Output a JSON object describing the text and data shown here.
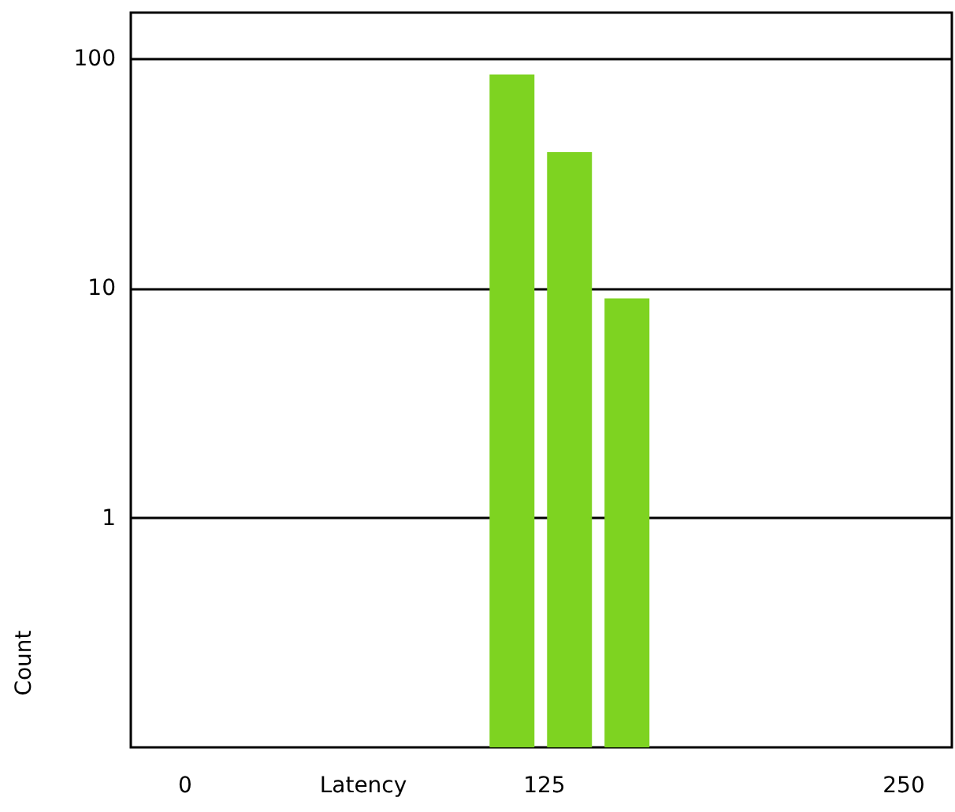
{
  "chart_data": {
    "type": "histogram",
    "xlabel": "Latency",
    "ylabel": "Count",
    "bins": [
      104,
      124,
      144,
      164
    ],
    "values": [
      85,
      39,
      9
    ],
    "color": "#7ed321",
    "xlim": [
      -18.6,
      267
    ],
    "xticks": [
      0,
      125,
      250
    ],
    "ylim": [
      0.1,
      158
    ],
    "yticks": [
      1,
      10,
      100
    ],
    "log": "y",
    "grid": "y"
  }
}
